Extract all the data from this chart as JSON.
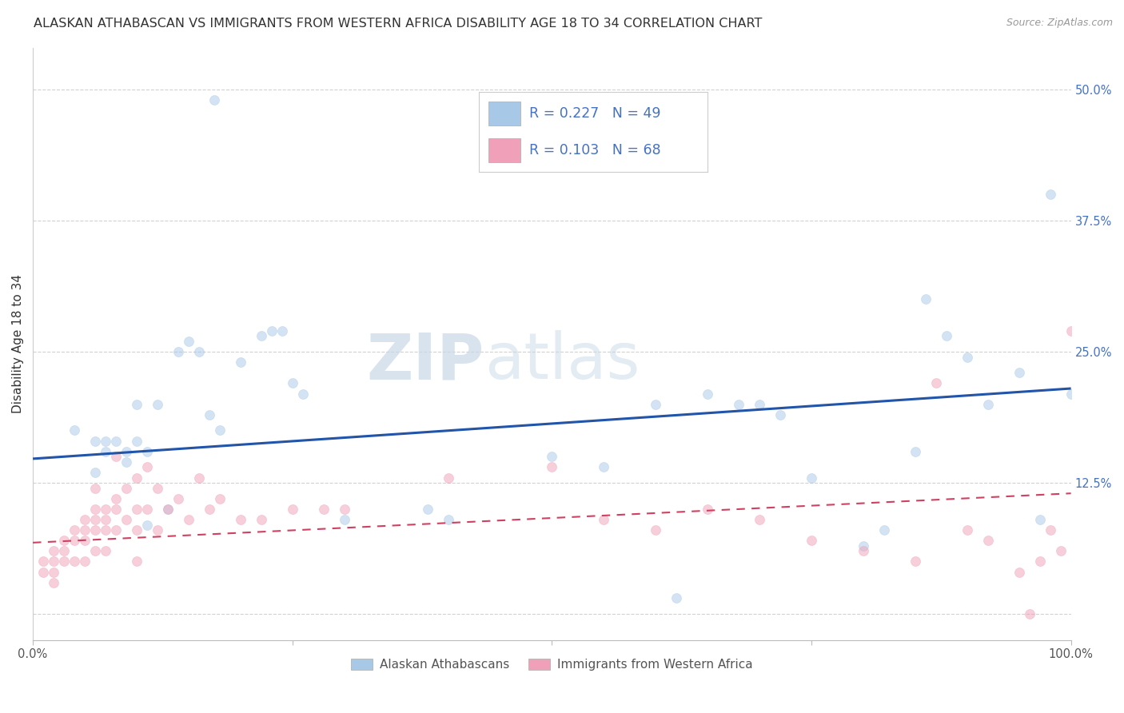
{
  "title": "ALASKAN ATHABASCAN VS IMMIGRANTS FROM WESTERN AFRICA DISABILITY AGE 18 TO 34 CORRELATION CHART",
  "source": "Source: ZipAtlas.com",
  "ylabel": "Disability Age 18 to 34",
  "xlim": [
    0.0,
    1.0
  ],
  "ylim": [
    -0.025,
    0.54
  ],
  "xticks": [
    0.0,
    0.25,
    0.5,
    0.75,
    1.0
  ],
  "xticklabels": [
    "0.0%",
    "",
    "",
    "",
    "100.0%"
  ],
  "yticks": [
    0.0,
    0.125,
    0.25,
    0.375,
    0.5
  ],
  "yticklabels": [
    "",
    "12.5%",
    "25.0%",
    "37.5%",
    "50.0%"
  ],
  "blue_R": 0.227,
  "blue_N": 49,
  "pink_R": 0.103,
  "pink_N": 68,
  "blue_color": "#A8C8E8",
  "pink_color": "#F0A0B8",
  "blue_line_color": "#2255AA",
  "pink_line_color": "#D04060",
  "watermark_zip": "ZIP",
  "watermark_atlas": "atlas",
  "legend_label_blue": "Alaskan Athabascans",
  "legend_label_pink": "Immigrants from Western Africa",
  "blue_scatter_x": [
    0.175,
    0.06,
    0.07,
    0.07,
    0.08,
    0.09,
    0.09,
    0.1,
    0.1,
    0.11,
    0.11,
    0.12,
    0.13,
    0.14,
    0.15,
    0.17,
    0.18,
    0.2,
    0.22,
    0.24,
    0.26,
    0.3,
    0.38,
    0.4,
    0.5,
    0.55,
    0.6,
    0.62,
    0.65,
    0.68,
    0.7,
    0.72,
    0.75,
    0.8,
    0.82,
    0.85,
    0.86,
    0.88,
    0.9,
    0.92,
    0.95,
    0.97,
    0.98,
    1.0,
    0.04,
    0.06,
    0.16,
    0.23,
    0.25
  ],
  "blue_scatter_y": [
    0.49,
    0.165,
    0.165,
    0.155,
    0.165,
    0.155,
    0.145,
    0.2,
    0.165,
    0.085,
    0.155,
    0.2,
    0.1,
    0.25,
    0.26,
    0.19,
    0.175,
    0.24,
    0.265,
    0.27,
    0.21,
    0.09,
    0.1,
    0.09,
    0.15,
    0.14,
    0.2,
    0.015,
    0.21,
    0.2,
    0.2,
    0.19,
    0.13,
    0.065,
    0.08,
    0.155,
    0.3,
    0.265,
    0.245,
    0.2,
    0.23,
    0.09,
    0.4,
    0.21,
    0.175,
    0.135,
    0.25,
    0.27,
    0.22
  ],
  "pink_scatter_x": [
    0.01,
    0.01,
    0.02,
    0.02,
    0.02,
    0.02,
    0.03,
    0.03,
    0.03,
    0.04,
    0.04,
    0.04,
    0.05,
    0.05,
    0.05,
    0.05,
    0.06,
    0.06,
    0.06,
    0.06,
    0.07,
    0.07,
    0.07,
    0.07,
    0.08,
    0.08,
    0.08,
    0.09,
    0.09,
    0.1,
    0.1,
    0.11,
    0.11,
    0.12,
    0.12,
    0.13,
    0.14,
    0.15,
    0.16,
    0.17,
    0.18,
    0.2,
    0.22,
    0.25,
    0.28,
    0.3,
    0.4,
    0.5,
    0.55,
    0.6,
    0.65,
    0.7,
    0.75,
    0.8,
    0.85,
    0.87,
    0.9,
    0.92,
    0.95,
    0.96,
    0.97,
    0.98,
    0.99,
    1.0,
    0.06,
    0.08,
    0.1,
    0.1
  ],
  "pink_scatter_y": [
    0.05,
    0.04,
    0.06,
    0.05,
    0.04,
    0.03,
    0.07,
    0.06,
    0.05,
    0.08,
    0.07,
    0.05,
    0.09,
    0.08,
    0.07,
    0.05,
    0.1,
    0.09,
    0.08,
    0.06,
    0.1,
    0.09,
    0.08,
    0.06,
    0.11,
    0.1,
    0.08,
    0.12,
    0.09,
    0.13,
    0.08,
    0.14,
    0.1,
    0.12,
    0.08,
    0.1,
    0.11,
    0.09,
    0.13,
    0.1,
    0.11,
    0.09,
    0.09,
    0.1,
    0.1,
    0.1,
    0.13,
    0.14,
    0.09,
    0.08,
    0.1,
    0.09,
    0.07,
    0.06,
    0.05,
    0.22,
    0.08,
    0.07,
    0.04,
    0.0,
    0.05,
    0.08,
    0.06,
    0.27,
    0.12,
    0.15,
    0.05,
    0.1
  ],
  "blue_line_y_start": 0.148,
  "blue_line_y_end": 0.215,
  "pink_line_y_start": 0.068,
  "pink_line_y_end": 0.115,
  "background_color": "#FFFFFF",
  "grid_color": "#CCCCCC",
  "title_fontsize": 11.5,
  "axis_label_fontsize": 11,
  "tick_fontsize": 10.5,
  "scatter_size": 75,
  "scatter_alpha": 0.5,
  "tick_color": "#4472C4"
}
